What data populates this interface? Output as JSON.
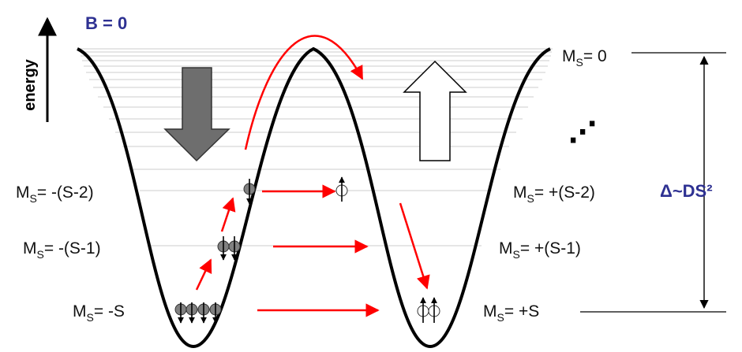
{
  "field_label": "B = 0",
  "energy_label": "energy",
  "delta_label": "Δ~DS²",
  "levels": {
    "left": [
      {
        "prefix": "M",
        "sub": "S",
        "rest": "= -(S-2)"
      },
      {
        "prefix": "M",
        "sub": "S",
        "rest": "= -(S-1)"
      },
      {
        "prefix": "M",
        "sub": "S",
        "rest": "= -S"
      }
    ],
    "right": [
      {
        "prefix": "M",
        "sub": "S",
        "rest": "= 0"
      },
      {
        "prefix": "M",
        "sub": "S",
        "rest": "= +(S-2)"
      },
      {
        "prefix": "M",
        "sub": "S",
        "rest": "= +(S-1)"
      },
      {
        "prefix": "M",
        "sub": "S",
        "rest": "= +S"
      }
    ]
  },
  "ellipsis": "⋰",
  "colors": {
    "curve": "#000000",
    "arrow": "#ff0000",
    "title_blue": "#2e3192",
    "spin_fill": "#808080",
    "big_arrow_fill": "#6e6e6e"
  }
}
